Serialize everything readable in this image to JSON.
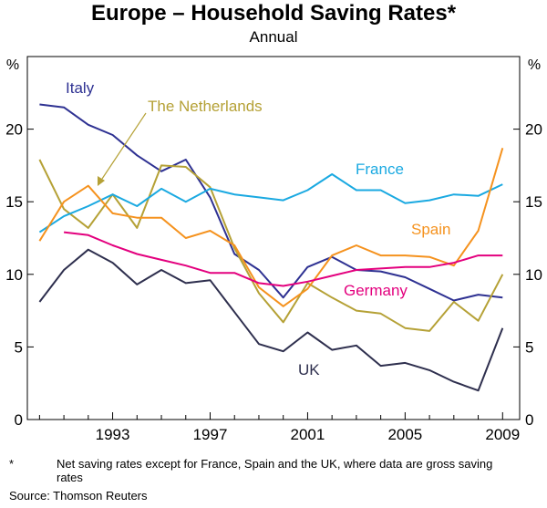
{
  "header": {
    "title": "Europe – Household Saving Rates*",
    "subtitle": "Annual"
  },
  "footer": {
    "asterisk": "*",
    "note": "Net saving rates except for France, Spain and the UK, where data are gross saving rates",
    "source": "Source: Thomson Reuters"
  },
  "chart_data": {
    "type": "line",
    "title": "Europe – Household Saving Rates*",
    "subtitle": "Annual",
    "y_unit_label": "%",
    "ylim": [
      0,
      25
    ],
    "y_ticks": [
      0,
      5,
      10,
      15,
      20
    ],
    "xlim": [
      1989.5,
      2009.7
    ],
    "x_ticks": [
      1993,
      1997,
      2001,
      2005,
      2009
    ],
    "grid": false,
    "series": [
      {
        "name": "Italy",
        "color": "#2e3192",
        "x": [
          1990,
          1991,
          1992,
          1993,
          1994,
          1995,
          1996,
          1997,
          1998,
          1999,
          2000,
          2001,
          2002,
          2003,
          2004,
          2005,
          2006,
          2007,
          2008,
          2009
        ],
        "values": [
          21.7,
          21.5,
          20.3,
          19.6,
          18.2,
          17.1,
          17.9,
          15.3,
          11.4,
          10.3,
          8.4,
          10.5,
          11.2,
          10.3,
          10.2,
          9.8,
          9.0,
          8.2,
          8.6,
          8.4
        ]
      },
      {
        "name": "The Netherlands",
        "color": "#b5a136",
        "x": [
          1990,
          1991,
          1992,
          1993,
          1994,
          1995,
          1996,
          1997,
          1998,
          1999,
          2000,
          2001,
          2002,
          2003,
          2004,
          2005,
          2006,
          2007,
          2008,
          2009
        ],
        "values": [
          17.9,
          14.5,
          13.2,
          15.5,
          13.2,
          17.5,
          17.4,
          16.0,
          11.8,
          8.7,
          6.7,
          9.4,
          8.4,
          7.5,
          7.3,
          6.3,
          6.1,
          8.1,
          6.8,
          10.0
        ]
      },
      {
        "name": "France",
        "color": "#1aa9e1",
        "x": [
          1990,
          1991,
          1992,
          1993,
          1994,
          1995,
          1996,
          1997,
          1998,
          1999,
          2000,
          2001,
          2002,
          2003,
          2004,
          2005,
          2006,
          2007,
          2008,
          2009
        ],
        "values": [
          12.9,
          14.0,
          14.7,
          15.5,
          14.7,
          15.9,
          15.0,
          15.9,
          15.5,
          15.3,
          15.1,
          15.8,
          16.9,
          15.8,
          15.8,
          14.9,
          15.1,
          15.5,
          15.4,
          16.2
        ]
      },
      {
        "name": "Spain",
        "color": "#f5921e",
        "x": [
          1990,
          1991,
          1992,
          1993,
          1994,
          1995,
          1996,
          1997,
          1998,
          1999,
          2000,
          2001,
          2002,
          2003,
          2004,
          2005,
          2006,
          2007,
          2008,
          2009
        ],
        "values": [
          12.3,
          15.0,
          16.1,
          14.2,
          13.9,
          13.9,
          12.5,
          13.0,
          12.0,
          9.1,
          7.8,
          9.0,
          11.3,
          12.0,
          11.3,
          11.3,
          11.2,
          10.6,
          13.0,
          18.7
        ]
      },
      {
        "name": "Germany",
        "color": "#e3007e",
        "x": [
          1991,
          1992,
          1993,
          1994,
          1995,
          1996,
          1997,
          1998,
          1999,
          2000,
          2001,
          2002,
          2003,
          2004,
          2005,
          2006,
          2007,
          2008,
          2009
        ],
        "values": [
          12.9,
          12.7,
          12.0,
          11.4,
          11.0,
          10.6,
          10.1,
          10.1,
          9.4,
          9.2,
          9.5,
          9.9,
          10.3,
          10.4,
          10.5,
          10.5,
          10.8,
          11.3,
          11.3
        ]
      },
      {
        "name": "UK",
        "color": "#2e2f4e",
        "x": [
          1990,
          1991,
          1992,
          1993,
          1994,
          1995,
          1996,
          1997,
          1998,
          1999,
          2000,
          2001,
          2002,
          2003,
          2004,
          2005,
          2006,
          2007,
          2008,
          2009
        ],
        "values": [
          8.1,
          10.3,
          11.7,
          10.8,
          9.3,
          10.3,
          9.4,
          9.6,
          7.4,
          5.2,
          4.7,
          6.0,
          4.8,
          5.1,
          3.7,
          3.9,
          3.4,
          2.6,
          2.0,
          6.3
        ]
      }
    ],
    "labels": [
      {
        "text": "Italy",
        "series": "Italy"
      },
      {
        "text": "The Netherlands",
        "series": "The Netherlands"
      },
      {
        "text": "France",
        "series": "France"
      },
      {
        "text": "Spain",
        "series": "Spain"
      },
      {
        "text": "Germany",
        "series": "Germany"
      },
      {
        "text": "UK",
        "series": "UK"
      }
    ]
  }
}
